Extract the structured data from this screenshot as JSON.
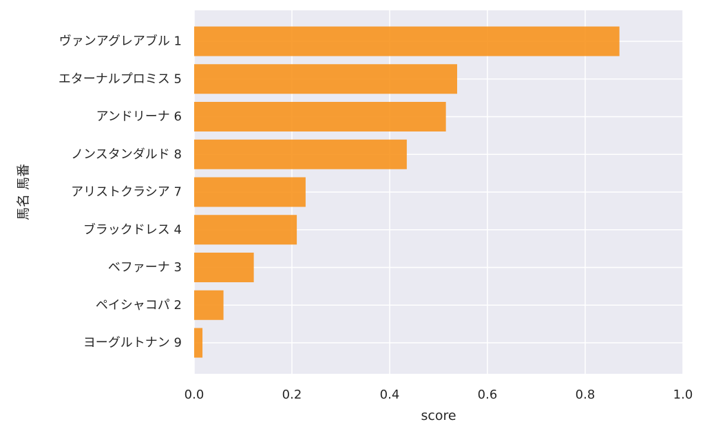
{
  "chart_data": {
    "type": "bar",
    "orientation": "horizontal",
    "categories": [
      "ヴァンアグレアブル 1",
      "エターナルプロミス 5",
      "アンドリーナ 6",
      "ノンスタンダルド 8",
      "アリストクラシア 7",
      "ブラックドレス 4",
      "ベファーナ 3",
      "ペイシャコパ 2",
      "ヨーグルトナン 9"
    ],
    "values": [
      0.87,
      0.538,
      0.515,
      0.435,
      0.228,
      0.21,
      0.122,
      0.06,
      0.017
    ],
    "xlabel": "score",
    "ylabel": "馬名 馬番",
    "xlim": [
      0,
      1.0
    ],
    "xticks": [
      "0.0",
      "0.2",
      "0.4",
      "0.6",
      "0.8",
      "1.0"
    ],
    "xtick_values": [
      0,
      0.2,
      0.4,
      0.6,
      0.8,
      1.0
    ],
    "grid": true,
    "colors": {
      "bar": "#f7931e",
      "background": "#eaeaf2",
      "grid": "#ffffff"
    }
  }
}
